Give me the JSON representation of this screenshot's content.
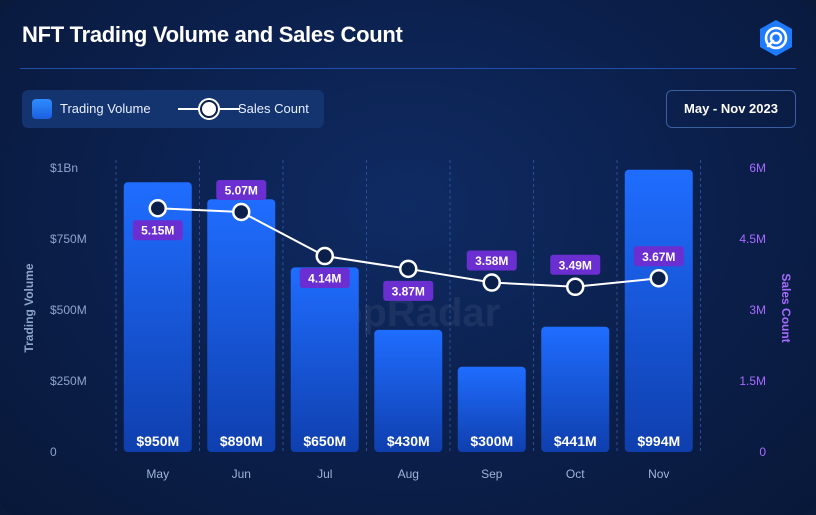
{
  "header": {
    "title": "NFT Trading Volume and Sales Count",
    "brand_icon": "appradar-logo-icon",
    "date_range": "May - Nov 2023"
  },
  "legend": {
    "bar_label": "Trading Volume",
    "line_label": "Sales Count"
  },
  "watermark": "appRadar",
  "chart_data": {
    "type": "bar",
    "categories": [
      "May",
      "Jun",
      "Jul",
      "Aug",
      "Sep",
      "Oct",
      "Nov"
    ],
    "series": [
      {
        "name": "Trading Volume",
        "type": "bar",
        "axis": "left",
        "values": [
          950,
          890,
          650,
          430,
          300,
          441,
          994
        ],
        "labels": [
          "$950M",
          "$890M",
          "$650M",
          "$430M",
          "$300M",
          "$441M",
          "$994M"
        ],
        "color": "#1f6dff"
      },
      {
        "name": "Sales Count",
        "type": "line",
        "axis": "right",
        "values": [
          5.15,
          5.07,
          4.14,
          3.87,
          3.58,
          3.49,
          3.67
        ],
        "labels": [
          "5.15M",
          "5.07M",
          "4.14M",
          "3.87M",
          "3.58M",
          "3.49M",
          "3.67M"
        ],
        "color": "#ffffff",
        "label_color": "#6b2fd1"
      }
    ],
    "y_left": {
      "label": "Trading Volume",
      "range": [
        0,
        1000
      ],
      "ticks": [
        0,
        250,
        500,
        750,
        1000
      ],
      "tick_labels": [
        "0",
        "$250M",
        "$500M",
        "$750M",
        "$1Bn"
      ]
    },
    "y_right": {
      "label": "Sales Count",
      "range": [
        0,
        6
      ],
      "ticks": [
        0,
        1.5,
        3,
        4.5,
        6
      ],
      "tick_labels": [
        "0",
        "1.5M",
        "3M",
        "4.5M",
        "6M"
      ]
    },
    "grid": "vertical-dashed",
    "legend_position": "top-left"
  }
}
